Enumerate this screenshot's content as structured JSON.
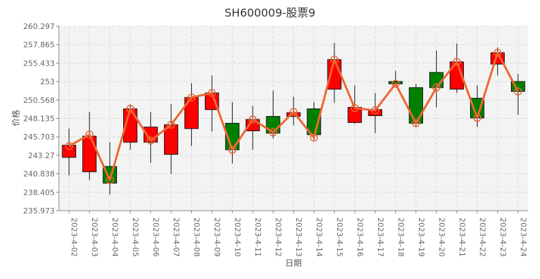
{
  "chart_data": {
    "type": "candlestick",
    "title": "SH600009-股票9",
    "xlabel": "日期",
    "ylabel": "价格",
    "ylim": [
      235.973,
      260.297
    ],
    "yticks": [
      "260.297",
      "257.865",
      "255.433",
      "253",
      "250.568",
      "248.135",
      "245.703",
      "243.27",
      "240.838",
      "238.405",
      "235.973"
    ],
    "grid": true,
    "categories": [
      "2023-4-02",
      "2023-4-03",
      "2023-4-04",
      "2023-4-05",
      "2023-4-06",
      "2023-4-07",
      "2023-4-08",
      "2023-4-09",
      "2023-4-10",
      "2023-4-11",
      "2023-4-12",
      "2023-4-13",
      "2023-4-14",
      "2023-4-15",
      "2023-4-16",
      "2023-4-17",
      "2023-4-18",
      "2023-4-19",
      "2023-4-20",
      "2023-4-21",
      "2023-4-22",
      "2023-4-23",
      "2023-4-24"
    ],
    "open": [
      243.0,
      241.1,
      241.8,
      245.0,
      245.0,
      243.4,
      246.8,
      249.3,
      247.5,
      246.5,
      248.4,
      248.4,
      249.4,
      252.0,
      247.6,
      248.5,
      253.0,
      252.2,
      254.2,
      252.0,
      250.8,
      255.3,
      253.0
    ],
    "close": [
      244.6,
      245.8,
      239.6,
      249.4,
      247.0,
      247.3,
      250.9,
      251.5,
      244.0,
      248.0,
      246.2,
      248.9,
      246.0,
      255.9,
      249.6,
      249.3,
      252.7,
      247.5,
      252.2,
      255.6,
      248.2,
      256.8,
      251.7
    ],
    "high": [
      246.8,
      249.0,
      245.0,
      250.0,
      249.0,
      250.0,
      252.8,
      253.8,
      250.3,
      249.8,
      251.8,
      251.0,
      250.3,
      258.1,
      252.5,
      251.5,
      254.4,
      252.7,
      257.1,
      258.0,
      252.5,
      257.5,
      254.0
    ],
    "low": [
      240.6,
      240.0,
      238.1,
      244.0,
      242.3,
      240.8,
      244.5,
      246.4,
      242.2,
      244.0,
      245.5,
      247.2,
      245.3,
      250.2,
      247.4,
      246.2,
      252.4,
      247.0,
      249.6,
      251.5,
      247.0,
      253.8,
      248.6
    ],
    "trend": [
      244.5,
      246.0,
      240.0,
      249.4,
      245.2,
      247.3,
      250.9,
      251.5,
      244.0,
      248.0,
      246.3,
      249.0,
      245.6,
      255.9,
      249.5,
      249.2,
      252.7,
      247.5,
      252.2,
      255.6,
      248.2,
      256.8,
      251.7
    ]
  }
}
